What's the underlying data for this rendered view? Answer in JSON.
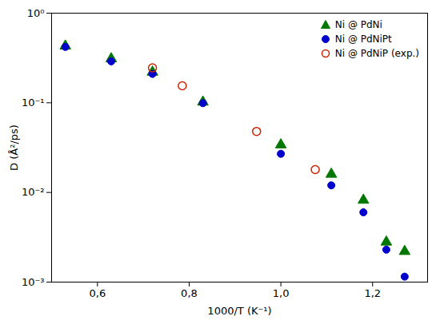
{
  "chart_data": {
    "type": "scatter",
    "xlabel": "1000/T (K⁻¹)",
    "ylabel": "D (Å²/ps)",
    "xlim": [
      0.5,
      1.32
    ],
    "ylim": [
      0.001,
      1
    ],
    "xticks": [
      {
        "value": 0.6,
        "label": "0,6"
      },
      {
        "value": 0.8,
        "label": "0,8"
      },
      {
        "value": 1.0,
        "label": "1,0"
      },
      {
        "value": 1.2,
        "label": "1,2"
      }
    ],
    "yticks": [
      {
        "value": 0.001,
        "label": "10⁻³"
      },
      {
        "value": 0.01,
        "label": "10⁻²"
      },
      {
        "value": 0.1,
        "label": "10⁻¹"
      },
      {
        "value": 1,
        "label": "10⁰"
      }
    ],
    "log": "y",
    "grid": false,
    "legend": "upper right",
    "series": [
      {
        "name": "Ni @ PdNi",
        "color": "#007700",
        "marker": "triangle",
        "x": [
          0.53,
          0.63,
          0.72,
          0.83,
          1.0,
          1.11,
          1.18,
          1.23,
          1.27
        ],
        "values": [
          0.43,
          0.31,
          0.22,
          0.102,
          0.034,
          0.016,
          0.0082,
          0.0028,
          0.0022
        ]
      },
      {
        "name": "Ni @ PdNiPt",
        "color": "#0000cc",
        "marker": "circle",
        "x": [
          0.53,
          0.63,
          0.72,
          0.83,
          1.0,
          1.11,
          1.18,
          1.23,
          1.27
        ],
        "values": [
          0.42,
          0.29,
          0.21,
          0.099,
          0.027,
          0.012,
          0.006,
          0.0023,
          0.00115
        ]
      },
      {
        "name": "Ni @ PdNiP (exp.)",
        "color": "#cc2200",
        "marker": "open_circle",
        "x": [
          0.72,
          0.785,
          0.947,
          1.075
        ],
        "values": [
          0.245,
          0.155,
          0.048,
          0.018
        ]
      }
    ]
  }
}
